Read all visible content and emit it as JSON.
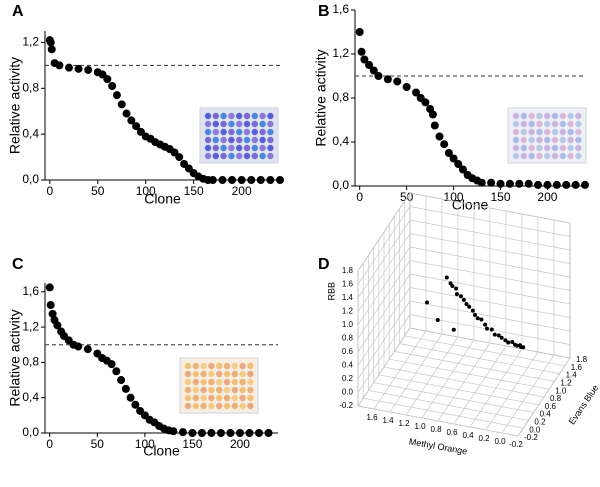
{
  "chart_data": [
    {
      "type": "scatter",
      "title": "A",
      "xlabel": "Clone",
      "ylabel": "Relative activity",
      "x": [
        0,
        1,
        2,
        5,
        10,
        20,
        30,
        40,
        50,
        55,
        60,
        65,
        70,
        75,
        80,
        85,
        90,
        95,
        100,
        105,
        110,
        115,
        120,
        125,
        130,
        135,
        140,
        145,
        150,
        155,
        160,
        165,
        170,
        180,
        190,
        200,
        210,
        220,
        230,
        240
      ],
      "values": [
        1.22,
        1.2,
        1.14,
        1.02,
        1.0,
        0.98,
        0.97,
        0.96,
        0.94,
        0.92,
        0.88,
        0.82,
        0.74,
        0.66,
        0.58,
        0.52,
        0.47,
        0.42,
        0.38,
        0.36,
        0.33,
        0.31,
        0.29,
        0.27,
        0.24,
        0.2,
        0.14,
        0.1,
        0.06,
        0.03,
        0.01,
        0,
        0,
        0,
        0,
        0,
        0,
        0,
        0,
        0
      ],
      "color": "#000000",
      "refline": 1,
      "xlim": [
        -5,
        240
      ],
      "xticks": [
        0,
        50,
        100,
        150,
        200
      ],
      "ylim": [
        0,
        1.3
      ],
      "yticks": [
        {
          "value": 0,
          "label": "0,0"
        },
        {
          "value": 0.4,
          "label": "0,4"
        },
        {
          "value": 0.8,
          "label": "0,8"
        },
        {
          "value": 1.2,
          "label": "1,2"
        }
      ]
    },
    {
      "type": "scatter",
      "title": "B",
      "xlabel": "Clone",
      "ylabel": "Relative activity",
      "x": [
        0,
        2,
        5,
        10,
        15,
        20,
        30,
        40,
        50,
        60,
        65,
        70,
        75,
        78,
        80,
        85,
        90,
        95,
        100,
        105,
        110,
        115,
        120,
        125,
        130,
        140,
        150,
        160,
        170,
        180,
        190,
        200,
        210,
        220,
        230,
        240
      ],
      "values": [
        1.4,
        1.22,
        1.15,
        1.1,
        1.05,
        1.0,
        0.97,
        0.95,
        0.9,
        0.85,
        0.8,
        0.76,
        0.7,
        0.65,
        0.55,
        0.45,
        0.38,
        0.3,
        0.25,
        0.2,
        0.15,
        0.1,
        0.07,
        0.05,
        0.03,
        0.03,
        0.02,
        0.02,
        0.02,
        0.02,
        0.01,
        0.01,
        0.01,
        0.01,
        0.01,
        0.01
      ],
      "color": "#000000",
      "refline": 1,
      "xlim": [
        -5,
        240
      ],
      "xticks": [
        0,
        50,
        100,
        150,
        200
      ],
      "ylim": [
        0,
        1.6
      ],
      "yticks": [
        {
          "value": 0,
          "label": "0,0"
        },
        {
          "value": 0.4,
          "label": "0,4"
        },
        {
          "value": 0.8,
          "label": "0,8"
        },
        {
          "value": 1.2,
          "label": "1,2"
        },
        {
          "value": 1.6,
          "label": "1,6"
        }
      ]
    },
    {
      "type": "scatter",
      "title": "C",
      "xlabel": "Clone",
      "ylabel": "Relative activity",
      "x": [
        0,
        1,
        3,
        5,
        8,
        12,
        15,
        20,
        25,
        30,
        40,
        50,
        55,
        60,
        65,
        70,
        75,
        80,
        85,
        90,
        95,
        100,
        105,
        110,
        115,
        120,
        125,
        130,
        140,
        150,
        160,
        170,
        180,
        190,
        200,
        210,
        220,
        230
      ],
      "values": [
        1.65,
        1.45,
        1.35,
        1.28,
        1.22,
        1.15,
        1.1,
        1.05,
        1.0,
        0.98,
        0.95,
        0.9,
        0.85,
        0.82,
        0.78,
        0.7,
        0.6,
        0.5,
        0.4,
        0.32,
        0.25,
        0.2,
        0.15,
        0.12,
        0.08,
        0.05,
        0.03,
        0.02,
        0.01,
        0,
        0,
        0,
        0,
        0,
        0,
        0,
        0,
        0
      ],
      "color": "#000000",
      "refline": 1,
      "xlim": [
        -5,
        240
      ],
      "xticks": [
        0,
        50,
        100,
        150,
        200
      ],
      "ylim": [
        0,
        1.7
      ],
      "yticks": [
        {
          "value": 0,
          "label": "0,0"
        },
        {
          "value": 0.4,
          "label": "0,4"
        },
        {
          "value": 0.8,
          "label": "0,8"
        },
        {
          "value": 1.2,
          "label": "1,2"
        },
        {
          "value": 1.6,
          "label": "1,6"
        }
      ]
    },
    {
      "type": "scatter3d",
      "title": "D",
      "xlabel": "Methyl Orange",
      "ylabel": "Evans Blue",
      "zlabel": "RBB",
      "x": [
        0.82,
        0.78,
        0.75,
        0.72,
        0.7,
        0.66,
        0.62,
        0.6,
        0.56,
        0.52,
        0.5,
        0.46,
        0.42,
        0.38,
        0.35,
        0.3,
        0.26,
        0.22,
        0.18,
        0.14,
        0.1,
        0.06,
        0.02,
        0,
        -0.03,
        -0.05,
        -0.07,
        1.1,
        0.9,
        0.7
      ],
      "y": [
        0.2,
        0.22,
        0.2,
        0.25,
        0.22,
        0.25,
        0.24,
        0.28,
        0.26,
        0.28,
        0.3,
        0.28,
        0.3,
        0.32,
        0.3,
        0.33,
        0.32,
        0.35,
        0.34,
        0.36,
        0.35,
        0.38,
        0.36,
        0.38,
        0.4,
        0.38,
        0.4,
        0.3,
        0.1,
        0.1
      ],
      "z": [
        1.69,
        1.6,
        1.58,
        1.52,
        1.46,
        1.42,
        1.38,
        1.3,
        1.28,
        1.22,
        1.15,
        1.12,
        1.1,
        1.02,
        0.98,
        0.96,
        0.9,
        0.88,
        0.86,
        0.82,
        0.8,
        0.8,
        0.78,
        0.76,
        0.76,
        0.75,
        0.74,
        1.2,
        1.1,
        1.0
      ],
      "color": "#000000",
      "xlim": [
        -0.2,
        1.8
      ],
      "xticks": [
        -0.2,
        {
          "value": 0,
          "label": "0.0"
        },
        0.2,
        0.4,
        0.6,
        0.8,
        {
          "value": 1,
          "label": "1.0"
        },
        1.2,
        1.4,
        1.6
      ],
      "ylim": [
        -0.2,
        1.8
      ],
      "yticks": [
        -0.2,
        {
          "value": 0,
          "label": "0.0"
        },
        0.2,
        0.4,
        0.6,
        0.8,
        {
          "value": 1,
          "label": "1.0"
        },
        1.2,
        1.4,
        1.6,
        1.8
      ],
      "zlim": [
        -0.2,
        1.8
      ],
      "zticks": [
        -0.2,
        {
          "value": 0,
          "label": "0.0"
        },
        0.2,
        0.4,
        0.6,
        0.8,
        {
          "value": 1,
          "label": "1.0"
        },
        1.2,
        1.4,
        1.6,
        1.8
      ]
    }
  ]
}
